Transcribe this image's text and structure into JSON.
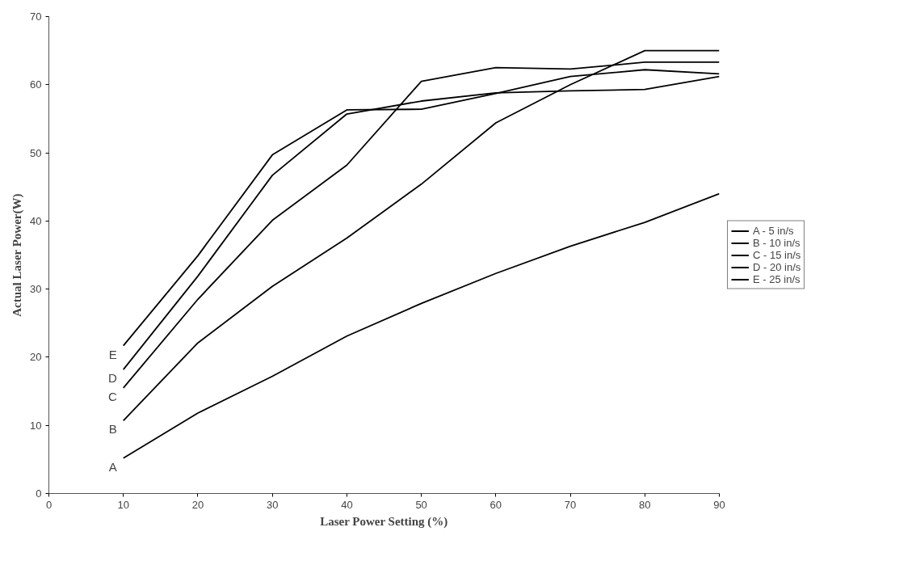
{
  "chart_data": {
    "type": "line",
    "xlabel": "Laser Power Setting (%)",
    "ylabel": "Actual Laser Power(W)",
    "x": [
      10,
      20,
      30,
      40,
      50,
      60,
      70,
      80,
      90
    ],
    "series": [
      {
        "name": "A - 5 in/s",
        "color": "#000000",
        "values": [
          5.2,
          11.8,
          17.2,
          23.1,
          27.9,
          32.3,
          36.3,
          39.8,
          44.0
        ]
      },
      {
        "name": "B - 10 in/s",
        "color": "#000000",
        "values": [
          10.7,
          22.1,
          30.4,
          37.5,
          45.4,
          54.4,
          60.0,
          65.0,
          65.0
        ]
      },
      {
        "name": "C - 15 in/s",
        "color": "#000000",
        "values": [
          15.5,
          28.5,
          40.1,
          48.2,
          60.5,
          62.5,
          62.3,
          63.3,
          63.3
        ]
      },
      {
        "name": "D - 20 in/s",
        "color": "#000000",
        "values": [
          18.2,
          31.9,
          46.7,
          55.7,
          57.6,
          58.8,
          59.1,
          59.3,
          61.2
        ]
      },
      {
        "name": "E - 25 in/s",
        "color": "#000000",
        "values": [
          21.7,
          34.9,
          49.7,
          56.3,
          56.4,
          58.7,
          61.2,
          62.2,
          61.6
        ]
      }
    ],
    "annotations": [
      "A",
      "B",
      "C",
      "D",
      "E"
    ],
    "xlim": [
      0,
      90
    ],
    "xticks": [
      0,
      10,
      20,
      30,
      40,
      50,
      60,
      70,
      80,
      90
    ],
    "ylim": [
      0,
      70
    ],
    "yticks": [
      0,
      10,
      20,
      30,
      40,
      50,
      60,
      70
    ],
    "grid": false,
    "legend": "right",
    "marker": "none",
    "line_style": "solid"
  }
}
